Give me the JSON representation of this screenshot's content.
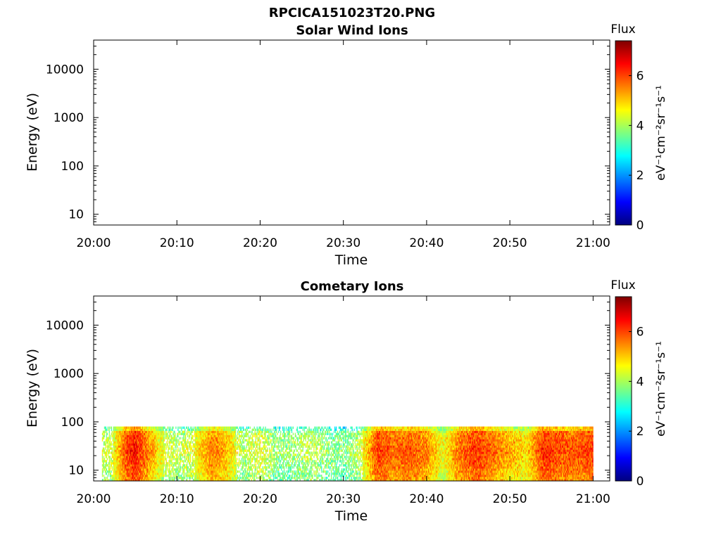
{
  "figure_title": "RPCICA151023T20.PNG",
  "colormap": [
    "#00007f",
    "#0000ff",
    "#007fff",
    "#00ffff",
    "#7fff7f",
    "#ffff00",
    "#ff7f00",
    "#ff0000",
    "#7f0000"
  ],
  "chart_data": [
    {
      "type": "heatmap",
      "title": "Solar Wind Ions",
      "xlabel": "Time",
      "ylabel": "Energy (eV)",
      "x_ticks": [
        "20:00",
        "20:10",
        "20:20",
        "20:30",
        "20:40",
        "20:50",
        "21:00"
      ],
      "y_ticks": [
        "10",
        "100",
        "1000",
        "10000"
      ],
      "y_scale": "log",
      "ylim": [
        6,
        40000
      ],
      "colorbar": {
        "title": "Flux",
        "label": "eV⁻¹cm⁻²sr⁻¹s⁻¹",
        "ticks": [
          "0",
          "2",
          "4",
          "6"
        ],
        "range": [
          0,
          7.4
        ]
      },
      "data": "no flux shown"
    },
    {
      "type": "heatmap",
      "title": "Cometary Ions",
      "xlabel": "Time",
      "ylabel": "Energy (eV)",
      "x_ticks": [
        "20:00",
        "20:10",
        "20:20",
        "20:30",
        "20:40",
        "20:50",
        "21:00"
      ],
      "y_ticks": [
        "10",
        "100",
        "1000",
        "10000"
      ],
      "y_scale": "log",
      "ylim": [
        6,
        40000
      ],
      "colorbar": {
        "title": "Flux",
        "label": "eV⁻¹cm⁻²sr⁻¹s⁻¹",
        "ticks": [
          "0",
          "2",
          "4",
          "6"
        ],
        "range": [
          0,
          7.4
        ]
      },
      "data_extent": {
        "time_start": "20:01",
        "time_end": "21:00",
        "energy_min": 6,
        "energy_max": 80
      },
      "flux_profile": [
        {
          "time": "20:02",
          "flux": 4.3
        },
        {
          "time": "20:04",
          "flux": 6.1
        },
        {
          "time": "20:05",
          "flux": 6.4
        },
        {
          "time": "20:06",
          "flux": 5.9
        },
        {
          "time": "20:08",
          "flux": 4.7
        },
        {
          "time": "20:10",
          "flux": 4.2
        },
        {
          "time": "20:12",
          "flux": 4.5
        },
        {
          "time": "20:14",
          "flux": 5.6
        },
        {
          "time": "20:15",
          "flux": 5.5
        },
        {
          "time": "20:16",
          "flux": 5.2
        },
        {
          "time": "20:18",
          "flux": 4.1
        },
        {
          "time": "20:20",
          "flux": 4.6
        },
        {
          "time": "20:22",
          "flux": 3.9
        },
        {
          "time": "20:24",
          "flux": 4.0
        },
        {
          "time": "20:26",
          "flux": 4.3
        },
        {
          "time": "20:28",
          "flux": 3.9
        },
        {
          "time": "20:30",
          "flux": 3.7
        },
        {
          "time": "20:32",
          "flux": 4.3
        },
        {
          "time": "20:34",
          "flux": 6.1
        },
        {
          "time": "20:36",
          "flux": 5.8
        },
        {
          "time": "20:38",
          "flux": 5.9
        },
        {
          "time": "20:40",
          "flux": 5.6
        },
        {
          "time": "20:42",
          "flux": 4.6
        },
        {
          "time": "20:44",
          "flux": 5.8
        },
        {
          "time": "20:46",
          "flux": 6.2
        },
        {
          "time": "20:48",
          "flux": 5.7
        },
        {
          "time": "20:50",
          "flux": 5.3
        },
        {
          "time": "20:52",
          "flux": 4.9
        },
        {
          "time": "20:54",
          "flux": 6.2
        },
        {
          "time": "20:56",
          "flux": 6.0
        },
        {
          "time": "20:58",
          "flux": 5.9
        },
        {
          "time": "21:00",
          "flux": 6.1
        }
      ]
    }
  ]
}
